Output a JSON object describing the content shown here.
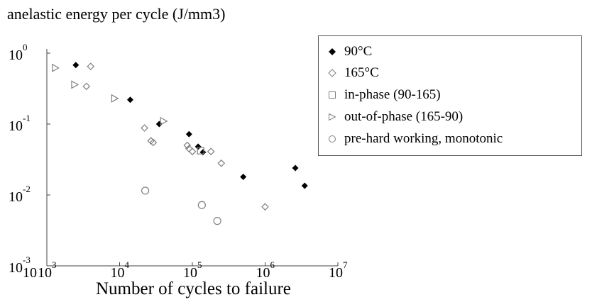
{
  "chart_data": {
    "type": "scatter",
    "title": "",
    "ylabel": "anelastic energy per cycle (J/mm3)",
    "xlabel": "Number of cycles to failure",
    "xscale": "log",
    "yscale": "log",
    "xlim": [
      1000,
      10000000
    ],
    "ylim": [
      0.001,
      1
    ],
    "grid": false,
    "legend_position": "right",
    "x_ticks": [
      {
        "value": 1000,
        "base": "10",
        "exp": "3",
        "extra_base": "10"
      },
      {
        "value": 10000,
        "base": "10",
        "exp": "4"
      },
      {
        "value": 100000,
        "base": "10",
        "exp": "5"
      },
      {
        "value": 1000000,
        "base": "10",
        "exp": "6"
      },
      {
        "value": 10000000,
        "base": "10",
        "exp": "7"
      }
    ],
    "y_ticks": [
      {
        "value": 1,
        "base": "10",
        "exp": "0"
      },
      {
        "value": 0.1,
        "base": "10",
        "exp": "-1"
      },
      {
        "value": 0.01,
        "base": "10",
        "exp": "-2"
      },
      {
        "value": 0.001,
        "base": "10",
        "exp": "-3"
      }
    ],
    "series": [
      {
        "name": "90°C",
        "marker": "diamond-filled",
        "color": "#000000",
        "points": [
          {
            "x": 2500,
            "y": 0.68
          },
          {
            "x": 14000,
            "y": 0.22
          },
          {
            "x": 35000,
            "y": 0.1
          },
          {
            "x": 90000,
            "y": 0.072
          },
          {
            "x": 120000,
            "y": 0.048
          },
          {
            "x": 140000,
            "y": 0.04
          },
          {
            "x": 500000,
            "y": 0.018
          },
          {
            "x": 2600000,
            "y": 0.024
          },
          {
            "x": 3500000,
            "y": 0.0135
          }
        ]
      },
      {
        "name": "165°C",
        "marker": "diamond-open",
        "color": "#7f7f7f",
        "points": [
          {
            "x": 4000,
            "y": 0.65
          },
          {
            "x": 3500,
            "y": 0.34
          },
          {
            "x": 22000,
            "y": 0.088
          },
          {
            "x": 27000,
            "y": 0.058
          },
          {
            "x": 29000,
            "y": 0.055
          },
          {
            "x": 85000,
            "y": 0.05
          },
          {
            "x": 90000,
            "y": 0.045
          },
          {
            "x": 100000,
            "y": 0.041
          },
          {
            "x": 180000,
            "y": 0.041
          },
          {
            "x": 250000,
            "y": 0.028
          },
          {
            "x": 1000000,
            "y": 0.0068
          }
        ]
      },
      {
        "name": "in-phase (90-165)",
        "marker": "square-open",
        "color": "#7f7f7f",
        "points": [
          {
            "x": 130000,
            "y": 0.042
          }
        ]
      },
      {
        "name": "out-of-phase (165-90)",
        "marker": "triangle-right-open",
        "color": "#7f7f7f",
        "points": [
          {
            "x": 1300,
            "y": 0.62
          },
          {
            "x": 2400,
            "y": 0.36
          },
          {
            "x": 8500,
            "y": 0.23
          },
          {
            "x": 40000,
            "y": 0.11
          }
        ]
      },
      {
        "name": "pre-hard working, monotonic",
        "marker": "circle-open",
        "color": "#7f7f7f",
        "points": [
          {
            "x": 22500,
            "y": 0.0115
          },
          {
            "x": 135000,
            "y": 0.0072
          },
          {
            "x": 220000,
            "y": 0.0043
          }
        ]
      }
    ]
  }
}
